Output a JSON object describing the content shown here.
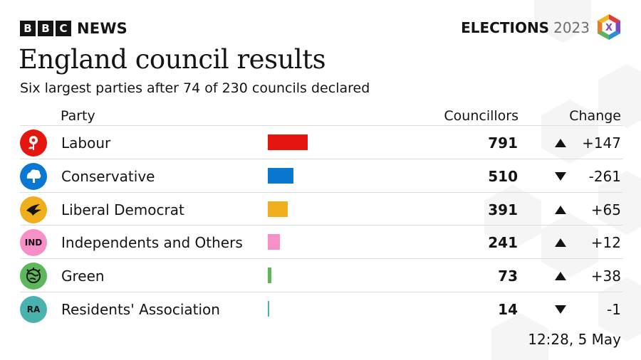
{
  "brand": {
    "letters": [
      "B",
      "B",
      "C"
    ],
    "news": "NEWS"
  },
  "elections": {
    "word": "ELECTIONS",
    "year": "2023",
    "logo_mark": "X"
  },
  "title": "England council results",
  "subtitle": "Six largest parties after 74 of 230 councils declared",
  "timestamp": "12:28,  5 May",
  "chart_data": {
    "type": "table",
    "columns": [
      "Party",
      "Councillors",
      "Change"
    ],
    "rows": [
      {
        "party": "Labour",
        "councillors": 791,
        "change": "+147",
        "direction": "up",
        "color": "#e4160f",
        "icon": "labour-rose-icon"
      },
      {
        "party": "Conservative",
        "councillors": 510,
        "change": "-261",
        "direction": "down",
        "color": "#0a77d0",
        "icon": "conservative-tree-icon"
      },
      {
        "party": "Liberal Democrat",
        "councillors": 391,
        "change": "+65",
        "direction": "up",
        "color": "#f0ad1c",
        "icon": "libdem-bird-icon"
      },
      {
        "party": "Independents and Others",
        "councillors": 241,
        "change": "+12",
        "direction": "up",
        "color": "#f78fc9",
        "icon": "independents-badge-icon",
        "abbr": "IND"
      },
      {
        "party": "Green",
        "councillors": 73,
        "change": "+38",
        "direction": "up",
        "color": "#5cb85b",
        "icon": "green-globe-icon"
      },
      {
        "party": "Residents' Association",
        "councillors": 14,
        "change": "-1",
        "direction": "down",
        "color": "#4ab2ae",
        "icon": "residents-association-badge-icon",
        "abbr": "RA"
      }
    ]
  }
}
